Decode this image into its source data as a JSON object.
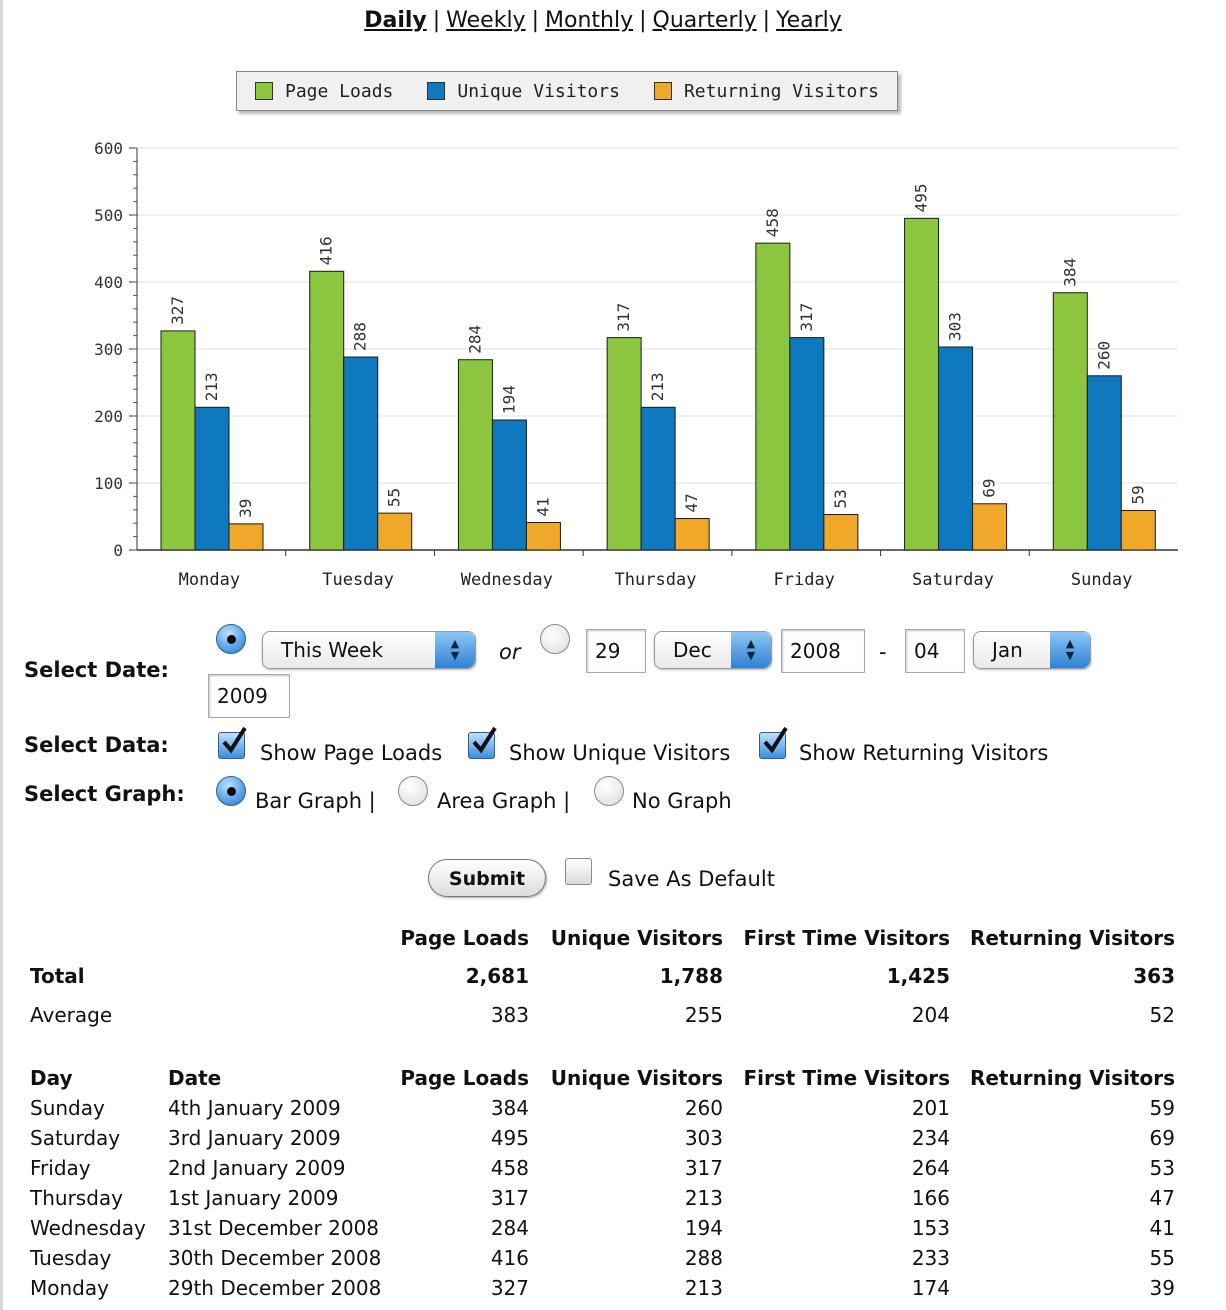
{
  "nav": {
    "items": [
      {
        "label": "Daily",
        "active": true
      },
      {
        "label": "Weekly",
        "active": false
      },
      {
        "label": "Monthly",
        "active": false
      },
      {
        "label": "Quarterly",
        "active": false
      },
      {
        "label": "Yearly",
        "active": false
      }
    ],
    "separator": "|"
  },
  "legend": [
    {
      "label": "Page Loads",
      "color": "#8cc63f"
    },
    {
      "label": "Unique Visitors",
      "color": "#0f79c0"
    },
    {
      "label": "Returning Visitors",
      "color": "#f0a82a"
    }
  ],
  "chart_data": {
    "type": "bar",
    "title": "",
    "categories": [
      "Monday",
      "Tuesday",
      "Wednesday",
      "Thursday",
      "Friday",
      "Saturday",
      "Sunday"
    ],
    "series": [
      {
        "name": "Page Loads",
        "color": "#8cc63f",
        "values": [
          327,
          416,
          284,
          317,
          458,
          495,
          384
        ]
      },
      {
        "name": "Unique Visitors",
        "color": "#0f79c0",
        "values": [
          213,
          288,
          194,
          213,
          317,
          303,
          260
        ]
      },
      {
        "name": "Returning Visitors",
        "color": "#f0a82a",
        "values": [
          39,
          55,
          41,
          47,
          53,
          69,
          59
        ]
      }
    ],
    "ylim": [
      0,
      600
    ],
    "yticks": [
      "0",
      "100",
      "200",
      "300",
      "400",
      "500",
      "600"
    ],
    "grid": true,
    "legend_position": "top"
  },
  "form": {
    "select_date_label": "Select Date:",
    "period_select": "This Week",
    "or_label": "or",
    "from_day": "29",
    "from_month": "Dec",
    "from_year": "2008",
    "range_sep": "-",
    "to_day": "04",
    "to_month": "Jan",
    "to_year": "2009",
    "select_data_label": "Select Data:",
    "show_page_loads": "Show Page Loads",
    "show_unique_visitors": "Show Unique Visitors",
    "show_returning_visitors": "Show Returning Visitors",
    "select_graph_label": "Select Graph:",
    "bar_graph": "Bar Graph |",
    "area_graph": "Area Graph |",
    "no_graph": "No Graph",
    "submit": "Submit",
    "save_default": "Save As Default"
  },
  "summary": {
    "headers": [
      "Page Loads",
      "Unique Visitors",
      "First Time Visitors",
      "Returning Visitors"
    ],
    "total": {
      "label": "Total",
      "values": [
        "2,681",
        "1,788",
        "1,425",
        "363"
      ]
    },
    "average": {
      "label": "Average",
      "values": [
        "383",
        "255",
        "204",
        "52"
      ]
    }
  },
  "daily": {
    "headers": [
      "Day",
      "Date",
      "Page Loads",
      "Unique Visitors",
      "First Time Visitors",
      "Returning Visitors"
    ],
    "rows": [
      [
        "Sunday",
        "4th January 2009",
        "384",
        "260",
        "201",
        "59"
      ],
      [
        "Saturday",
        "3rd January 2009",
        "495",
        "303",
        "234",
        "69"
      ],
      [
        "Friday",
        "2nd January 2009",
        "458",
        "317",
        "264",
        "53"
      ],
      [
        "Thursday",
        "1st January 2009",
        "317",
        "213",
        "166",
        "47"
      ],
      [
        "Wednesday",
        "31st December 2008",
        "284",
        "194",
        "153",
        "41"
      ],
      [
        "Tuesday",
        "30th December 2008",
        "416",
        "288",
        "233",
        "55"
      ],
      [
        "Monday",
        "29th December 2008",
        "327",
        "213",
        "174",
        "39"
      ]
    ]
  }
}
